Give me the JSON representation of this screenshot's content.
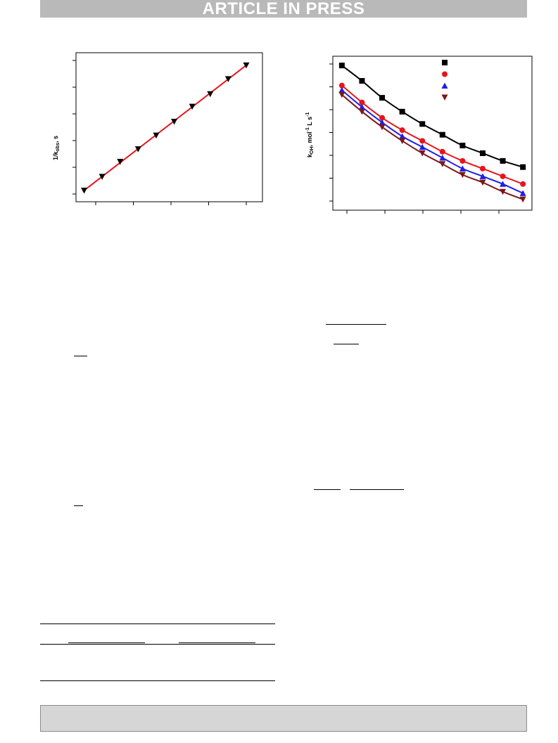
{
  "header": {
    "banner_text": "ARTICLE IN PRESS"
  },
  "chart_data": [
    {
      "type": "scatter",
      "ylabel_main": "1/k",
      "ylabel_sub": "obs",
      "ylabel_tail": ", s",
      "x": [
        1,
        2,
        3,
        4,
        5,
        6,
        7,
        8,
        9
      ],
      "series": [
        {
          "values": [
            0.0,
            1.1,
            2.3,
            3.3,
            4.4,
            5.5,
            6.7,
            7.7,
            8.9,
            10.0
          ]
        }
      ],
      "x_full": [
        0,
        1,
        2,
        3,
        4,
        5,
        6,
        7,
        8,
        9
      ],
      "fit": "linear",
      "marker": "inverted-triangle",
      "line_color": "#e8141c",
      "marker_color": "#000000",
      "xlim": [
        -0.45,
        9.9
      ],
      "ylim": [
        -0.9,
        11.0
      ]
    },
    {
      "type": "scatter",
      "ylabel_main": "k",
      "ylabel_sub": "OH",
      "ylabel_tail": ", mol",
      "ylabel_sup1": "-1",
      "ylabel_mid": " L s",
      "ylabel_sup2": "-1",
      "x": [
        0,
        1,
        2,
        3,
        4,
        5,
        6,
        7,
        8,
        9
      ],
      "series": [
        {
          "marker": "square",
          "color": "#000000",
          "values": [
            9.4,
            8.4,
            7.3,
            6.4,
            5.6,
            4.9,
            4.2,
            3.7,
            3.2,
            2.8
          ]
        },
        {
          "marker": "circle",
          "color": "#e8141c",
          "values": [
            8.1,
            7.0,
            6.0,
            5.2,
            4.5,
            3.8,
            3.2,
            2.7,
            2.2,
            1.7
          ]
        },
        {
          "marker": "triangle",
          "color": "#1e1ee6",
          "values": [
            7.8,
            6.7,
            5.7,
            4.8,
            4.1,
            3.4,
            2.7,
            2.2,
            1.7,
            1.1
          ]
        },
        {
          "marker": "inverted-triangle",
          "color": "#7b1818",
          "values": [
            7.5,
            6.4,
            5.4,
            4.5,
            3.7,
            3.0,
            2.3,
            1.8,
            1.2,
            0.7
          ]
        }
      ],
      "xlim": [
        -0.45,
        9.45
      ],
      "ylim": [
        0,
        10
      ]
    }
  ]
}
